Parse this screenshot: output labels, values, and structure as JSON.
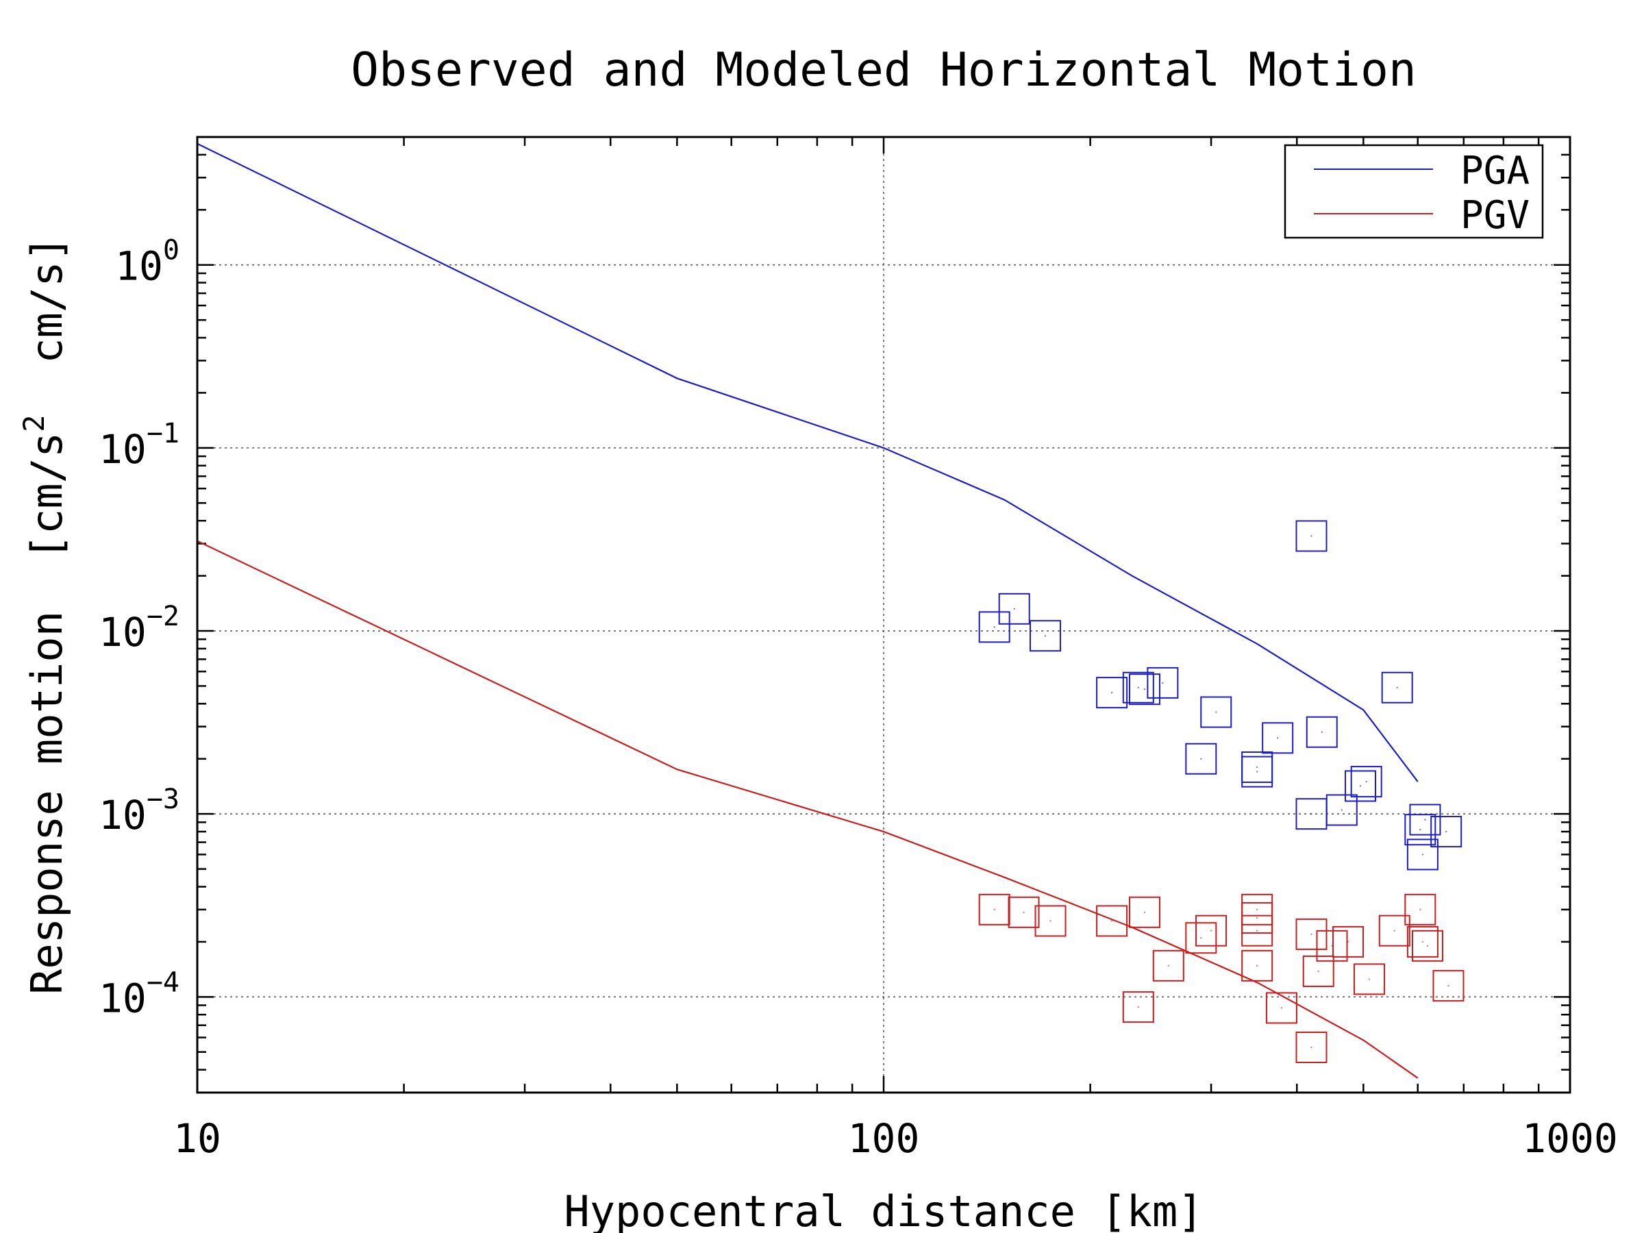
{
  "chart_data": {
    "type": "scatter",
    "title": "Observed and Modeled Horizontal Motion",
    "xlabel": "Hypocentral distance [km]",
    "ylabel": "Response motion  [cm/s",
    "ylabel_sup": "2",
    "ylabel_tail": "  cm/s]",
    "xscale": "log",
    "yscale": "log",
    "xlim": [
      10,
      1000
    ],
    "ylim": [
      3e-05,
      5.0
    ],
    "grid": true,
    "legend_position": "top-right",
    "x_ticks": [
      {
        "value": 10,
        "label": "10"
      },
      {
        "value": 100,
        "label": "100"
      },
      {
        "value": 1000,
        "label": "1000"
      }
    ],
    "y_ticks": [
      {
        "value": 1,
        "base": "10",
        "exp": "0"
      },
      {
        "value": 0.1,
        "base": "10",
        "exp": "−1"
      },
      {
        "value": 0.01,
        "base": "10",
        "exp": "−2"
      },
      {
        "value": 0.001,
        "base": "10",
        "exp": "−3"
      },
      {
        "value": 0.0001,
        "base": "10",
        "exp": "−4"
      }
    ],
    "series": [
      {
        "name": "PGA",
        "color": "#1c1cc8",
        "model": {
          "x": [
            10,
            50,
            100,
            150,
            230,
            350,
            500,
            600
          ],
          "y": [
            4.6,
            0.24,
            0.1,
            0.052,
            0.02,
            0.0085,
            0.0037,
            0.0015
          ]
        },
        "observed": {
          "x": [
            145,
            155,
            172,
            215,
            235,
            240,
            255,
            290,
            305,
            350,
            350,
            375,
            420,
            435,
            420,
            465,
            495,
            505,
            560,
            605,
            615,
            610,
            660
          ],
          "y": [
            0.0105,
            0.0132,
            0.0094,
            0.0046,
            0.0049,
            0.0048,
            0.0052,
            0.002,
            0.0036,
            0.0018,
            0.0017,
            0.0026,
            0.033,
            0.0028,
            0.001,
            0.00105,
            0.00142,
            0.0015,
            0.0049,
            0.00082,
            0.00093,
            0.0006,
            0.0008
          ]
        }
      },
      {
        "name": "PGV",
        "color": "#cc1c1c",
        "model": {
          "x": [
            10,
            50,
            100,
            150,
            230,
            350,
            500,
            600
          ],
          "y": [
            0.031,
            0.00175,
            0.0008,
            0.00045,
            0.00024,
            0.00012,
            5.8e-05,
            3.6e-05
          ]
        },
        "observed": {
          "x": [
            145,
            160,
            175,
            215,
            240,
            235,
            260,
            290,
            300,
            350,
            350,
            350,
            350,
            380,
            420,
            430,
            420,
            450,
            475,
            510,
            555,
            605,
            610,
            620,
            665
          ],
          "y": [
            0.0003,
            0.00029,
            0.00026,
            0.00026,
            0.00029,
            8.8e-05,
            0.000148,
            0.00021,
            0.00023,
            0.0003,
            0.00027,
            0.00023,
            0.000148,
            8.7e-05,
            0.00022,
            0.000138,
            5.3e-05,
            0.00019,
            0.0002,
            0.000125,
            0.00023,
            0.0003,
            0.0002,
            0.00019,
            0.000115
          ]
        }
      }
    ]
  }
}
